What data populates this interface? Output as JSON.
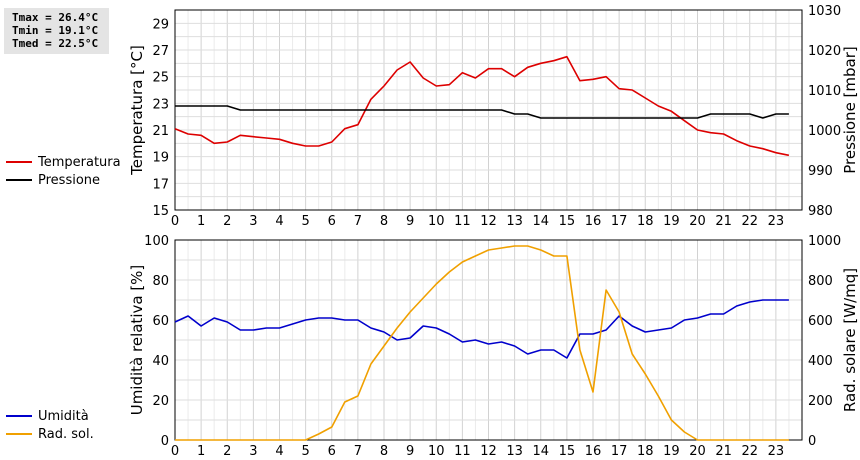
{
  "stats": {
    "tmax": "Tmax = 26.4°C",
    "tmin": "Tmin = 19.1°C",
    "tmed": "Tmed = 22.5°C"
  },
  "legend_top": [
    {
      "name": "Temperatura",
      "color": "#dd0000"
    },
    {
      "name": "Pressione",
      "color": "#000000"
    }
  ],
  "legend_bottom": [
    {
      "name": "Umidità",
      "color": "#0000cc"
    },
    {
      "name": "Rad. sol.",
      "color": "#f0a000"
    }
  ],
  "chart_data": [
    {
      "type": "line",
      "xlabel": "",
      "x_ticks": [
        0,
        1,
        2,
        3,
        4,
        5,
        6,
        7,
        8,
        9,
        10,
        11,
        12,
        13,
        14,
        15,
        16,
        17,
        18,
        19,
        20,
        21,
        22,
        23
      ],
      "xlim": [
        0,
        24
      ],
      "y_left": {
        "label": "Temperatura [°C]",
        "lim": [
          15,
          30
        ],
        "ticks": [
          15,
          17,
          19,
          21,
          23,
          25,
          27,
          29
        ]
      },
      "y_right": {
        "label": "Pressione [mbar]",
        "lim": [
          980,
          1030
        ],
        "ticks": [
          980,
          990,
          1000,
          1010,
          1020,
          1030
        ]
      },
      "grid": true,
      "series": [
        {
          "name": "Temperatura",
          "axis": "left",
          "color": "#dd0000",
          "x": [
            0,
            0.5,
            1,
            1.5,
            2,
            2.5,
            3,
            3.5,
            4,
            4.5,
            5,
            5.5,
            6,
            6.5,
            7,
            7.5,
            8,
            8.5,
            9,
            9.5,
            10,
            10.5,
            11,
            11.5,
            12,
            12.5,
            13,
            13.5,
            14,
            14.5,
            15,
            15.5,
            16,
            16.5,
            17,
            17.5,
            18,
            18.5,
            19,
            19.5,
            20,
            20.5,
            21,
            21.5,
            22,
            22.5,
            23,
            23.5
          ],
          "y": [
            21.1,
            20.7,
            20.6,
            20.0,
            20.1,
            20.6,
            20.5,
            20.4,
            20.3,
            20.0,
            19.8,
            19.8,
            20.1,
            21.1,
            21.4,
            23.3,
            24.3,
            25.5,
            26.1,
            24.9,
            24.3,
            24.4,
            25.3,
            24.9,
            25.6,
            25.6,
            25.0,
            25.7,
            26.0,
            26.2,
            26.5,
            24.7,
            24.8,
            25.0,
            24.1,
            24.0,
            23.4,
            22.8,
            22.4,
            21.7,
            21.0,
            20.8,
            20.7,
            20.2,
            19.8,
            19.6,
            19.3,
            19.1
          ]
        },
        {
          "name": "Pressione",
          "axis": "right",
          "color": "#000000",
          "x": [
            0,
            2,
            2.5,
            12.5,
            13,
            13.5,
            14,
            19,
            19.5,
            20,
            20.5,
            22,
            22.5,
            23,
            23.5
          ],
          "y": [
            1006,
            1006,
            1005,
            1005,
            1004,
            1004,
            1003,
            1003,
            1003,
            1003,
            1004,
            1004,
            1003,
            1004,
            1004
          ]
        }
      ]
    },
    {
      "type": "line",
      "xlabel": "",
      "x_ticks": [
        0,
        1,
        2,
        3,
        4,
        5,
        6,
        7,
        8,
        9,
        10,
        11,
        12,
        13,
        14,
        15,
        16,
        17,
        18,
        19,
        20,
        21,
        22,
        23
      ],
      "xlim": [
        0,
        24
      ],
      "y_left": {
        "label": "Umidità relativa [%]",
        "lim": [
          0,
          100
        ],
        "ticks": [
          0,
          20,
          40,
          60,
          80,
          100
        ]
      },
      "y_right": {
        "label": "Rad. solare [W/mq]",
        "lim": [
          0,
          1000
        ],
        "ticks": [
          0,
          200,
          400,
          600,
          800,
          1000
        ]
      },
      "grid": true,
      "series": [
        {
          "name": "Umidità",
          "axis": "left",
          "color": "#0000cc",
          "x": [
            0,
            0.5,
            1,
            1.5,
            2,
            2.5,
            3,
            3.5,
            4,
            4.5,
            5,
            5.5,
            6,
            6.5,
            7,
            7.5,
            8,
            8.5,
            9,
            9.5,
            10,
            10.5,
            11,
            11.5,
            12,
            12.5,
            13,
            13.5,
            14,
            14.5,
            15,
            15.5,
            16,
            16.5,
            17,
            17.5,
            18,
            18.5,
            19,
            19.5,
            20,
            20.5,
            21,
            21.5,
            22,
            22.5,
            23,
            23.5
          ],
          "y": [
            59,
            62,
            57,
            61,
            59,
            55,
            55,
            56,
            56,
            58,
            60,
            61,
            61,
            60,
            60,
            56,
            54,
            50,
            51,
            57,
            56,
            53,
            49,
            50,
            48,
            49,
            47,
            43,
            45,
            45,
            41,
            53,
            53,
            55,
            62,
            57,
            54,
            55,
            56,
            60,
            61,
            63,
            63,
            67,
            69,
            70,
            70,
            70
          ]
        },
        {
          "name": "Rad. sol.",
          "axis": "right",
          "color": "#f0a000",
          "x": [
            0,
            0.5,
            1,
            1.5,
            2,
            2.5,
            3,
            3.5,
            4,
            4.5,
            5,
            5.5,
            6,
            6.5,
            7,
            7.5,
            8,
            8.5,
            9,
            9.5,
            10,
            10.5,
            11,
            11.5,
            12,
            12.5,
            13,
            13.5,
            14,
            14.5,
            15,
            15.5,
            16,
            16.5,
            17,
            17.5,
            18,
            18.5,
            19,
            19.5,
            20,
            20.5,
            21,
            21.5,
            22,
            22.5,
            23,
            23.5
          ],
          "y": [
            0,
            0,
            0,
            0,
            0,
            0,
            0,
            0,
            0,
            0,
            0,
            30,
            65,
            190,
            220,
            380,
            470,
            560,
            640,
            710,
            780,
            840,
            890,
            920,
            950,
            960,
            970,
            970,
            950,
            920,
            920,
            450,
            240,
            750,
            640,
            430,
            330,
            220,
            100,
            40,
            0,
            0,
            0,
            0,
            0,
            0,
            0,
            0
          ]
        }
      ]
    }
  ]
}
